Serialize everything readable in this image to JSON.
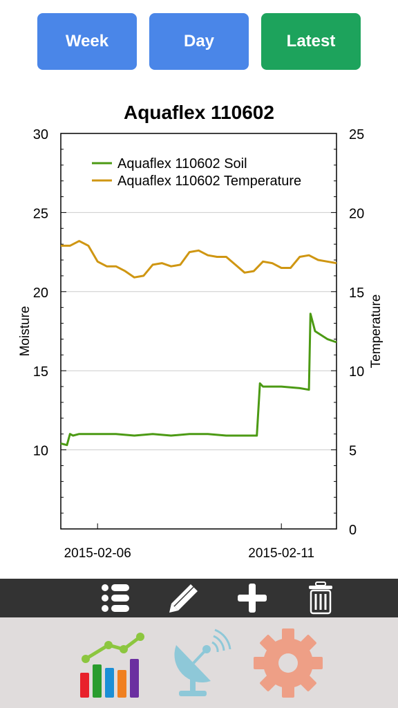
{
  "buttons": {
    "week": "Week",
    "day": "Day",
    "latest": "Latest"
  },
  "colors": {
    "button_blue": "#4a86e8",
    "button_green": "#1da35c",
    "soil_series": "#4c9a14",
    "temperature_series": "#cf9612",
    "toolbar_bg": "#333333",
    "tabbar_bg": "#e0dcdc"
  },
  "toolbar": {
    "icons": [
      "list-icon",
      "pencil-icon",
      "plus-icon",
      "trash-icon"
    ]
  },
  "tabbar": {
    "icons": [
      "bar-chart-icon",
      "satellite-dish-icon",
      "gear-icon"
    ]
  },
  "chart_data": {
    "type": "line",
    "title": "Aquaflex 110602",
    "ylabel": "Moisture",
    "y2label": "Temperature",
    "ylim": [
      5,
      30
    ],
    "y2lim": [
      0,
      25
    ],
    "xlim": [
      "2015-02-05 00:00",
      "2015-02-12 12:00"
    ],
    "yticks": [
      10,
      15,
      20,
      25,
      30
    ],
    "y2ticks": [
      0,
      5,
      10,
      15,
      20,
      25
    ],
    "xticks": [
      "2015-02-06",
      "2015-02-11"
    ],
    "grid": "horizontal",
    "legend_position": "top-left",
    "series": [
      {
        "name": "Aquaflex 110602 Soil",
        "axis": "left",
        "x": [
          "2015-02-05 00:00",
          "2015-02-05 04:00",
          "2015-02-05 06:00",
          "2015-02-05 08:00",
          "2015-02-05 12:00",
          "2015-02-06 00:00",
          "2015-02-06 12:00",
          "2015-02-07 00:00",
          "2015-02-07 12:00",
          "2015-02-08 00:00",
          "2015-02-08 12:00",
          "2015-02-09 00:00",
          "2015-02-09 12:00",
          "2015-02-10 00:00",
          "2015-02-10 04:00",
          "2015-02-10 08:00",
          "2015-02-10 10:00",
          "2015-02-10 12:00",
          "2015-02-11 00:00",
          "2015-02-11 12:00",
          "2015-02-11 18:00",
          "2015-02-11 19:00",
          "2015-02-11 22:00",
          "2015-02-12 06:00",
          "2015-02-12 12:00"
        ],
        "values": [
          10.4,
          10.3,
          11.0,
          10.9,
          11.0,
          11.0,
          11.0,
          10.9,
          11.0,
          10.9,
          11.0,
          11.0,
          10.9,
          10.9,
          10.9,
          10.9,
          14.2,
          14.0,
          14.0,
          13.9,
          13.8,
          18.6,
          17.5,
          17.0,
          16.8
        ]
      },
      {
        "name": "Aquaflex 110602 Temperature",
        "axis": "right",
        "x": [
          "2015-02-05 00:00",
          "2015-02-05 06:00",
          "2015-02-05 12:00",
          "2015-02-05 18:00",
          "2015-02-06 00:00",
          "2015-02-06 06:00",
          "2015-02-06 12:00",
          "2015-02-06 18:00",
          "2015-02-07 00:00",
          "2015-02-07 06:00",
          "2015-02-07 12:00",
          "2015-02-07 18:00",
          "2015-02-08 00:00",
          "2015-02-08 06:00",
          "2015-02-08 12:00",
          "2015-02-08 18:00",
          "2015-02-09 00:00",
          "2015-02-09 06:00",
          "2015-02-09 12:00",
          "2015-02-09 18:00",
          "2015-02-10 00:00",
          "2015-02-10 06:00",
          "2015-02-10 12:00",
          "2015-02-10 18:00",
          "2015-02-11 00:00",
          "2015-02-11 06:00",
          "2015-02-11 12:00",
          "2015-02-11 18:00",
          "2015-02-12 00:00",
          "2015-02-12 06:00",
          "2015-02-12 12:00"
        ],
        "values": [
          17.9,
          17.9,
          18.2,
          17.9,
          16.9,
          16.6,
          16.6,
          16.3,
          15.9,
          16.0,
          16.7,
          16.8,
          16.6,
          16.7,
          17.5,
          17.6,
          17.3,
          17.2,
          17.2,
          16.7,
          16.2,
          16.3,
          16.9,
          16.8,
          16.5,
          16.5,
          17.2,
          17.3,
          17.0,
          16.9,
          16.8
        ]
      }
    ]
  }
}
